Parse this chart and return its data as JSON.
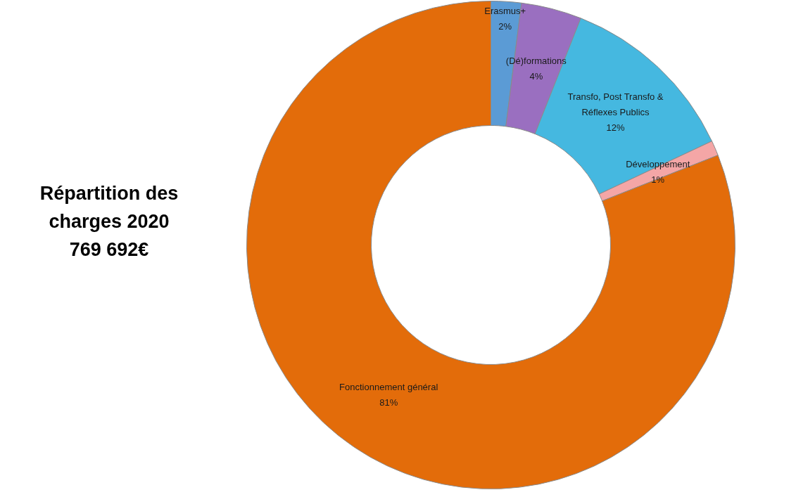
{
  "chart_data": {
    "type": "donut",
    "title": "Répartition des charges 2020",
    "subtitle": "769 692€",
    "categories": [
      "Erasmus+",
      "(Dé)formations",
      "Transfo, Post Transfo & Réflexes Publics",
      "Développement",
      "Fonctionnement général"
    ],
    "values": [
      2,
      4,
      12,
      1,
      81
    ],
    "value_labels": [
      "2%",
      "4%",
      "12%",
      "1%",
      "81%"
    ],
    "colors": [
      "#5b9bd5",
      "#9a6fc0",
      "#45b8e0",
      "#f4a6a6",
      "#e36c0a"
    ],
    "legend": false
  }
}
